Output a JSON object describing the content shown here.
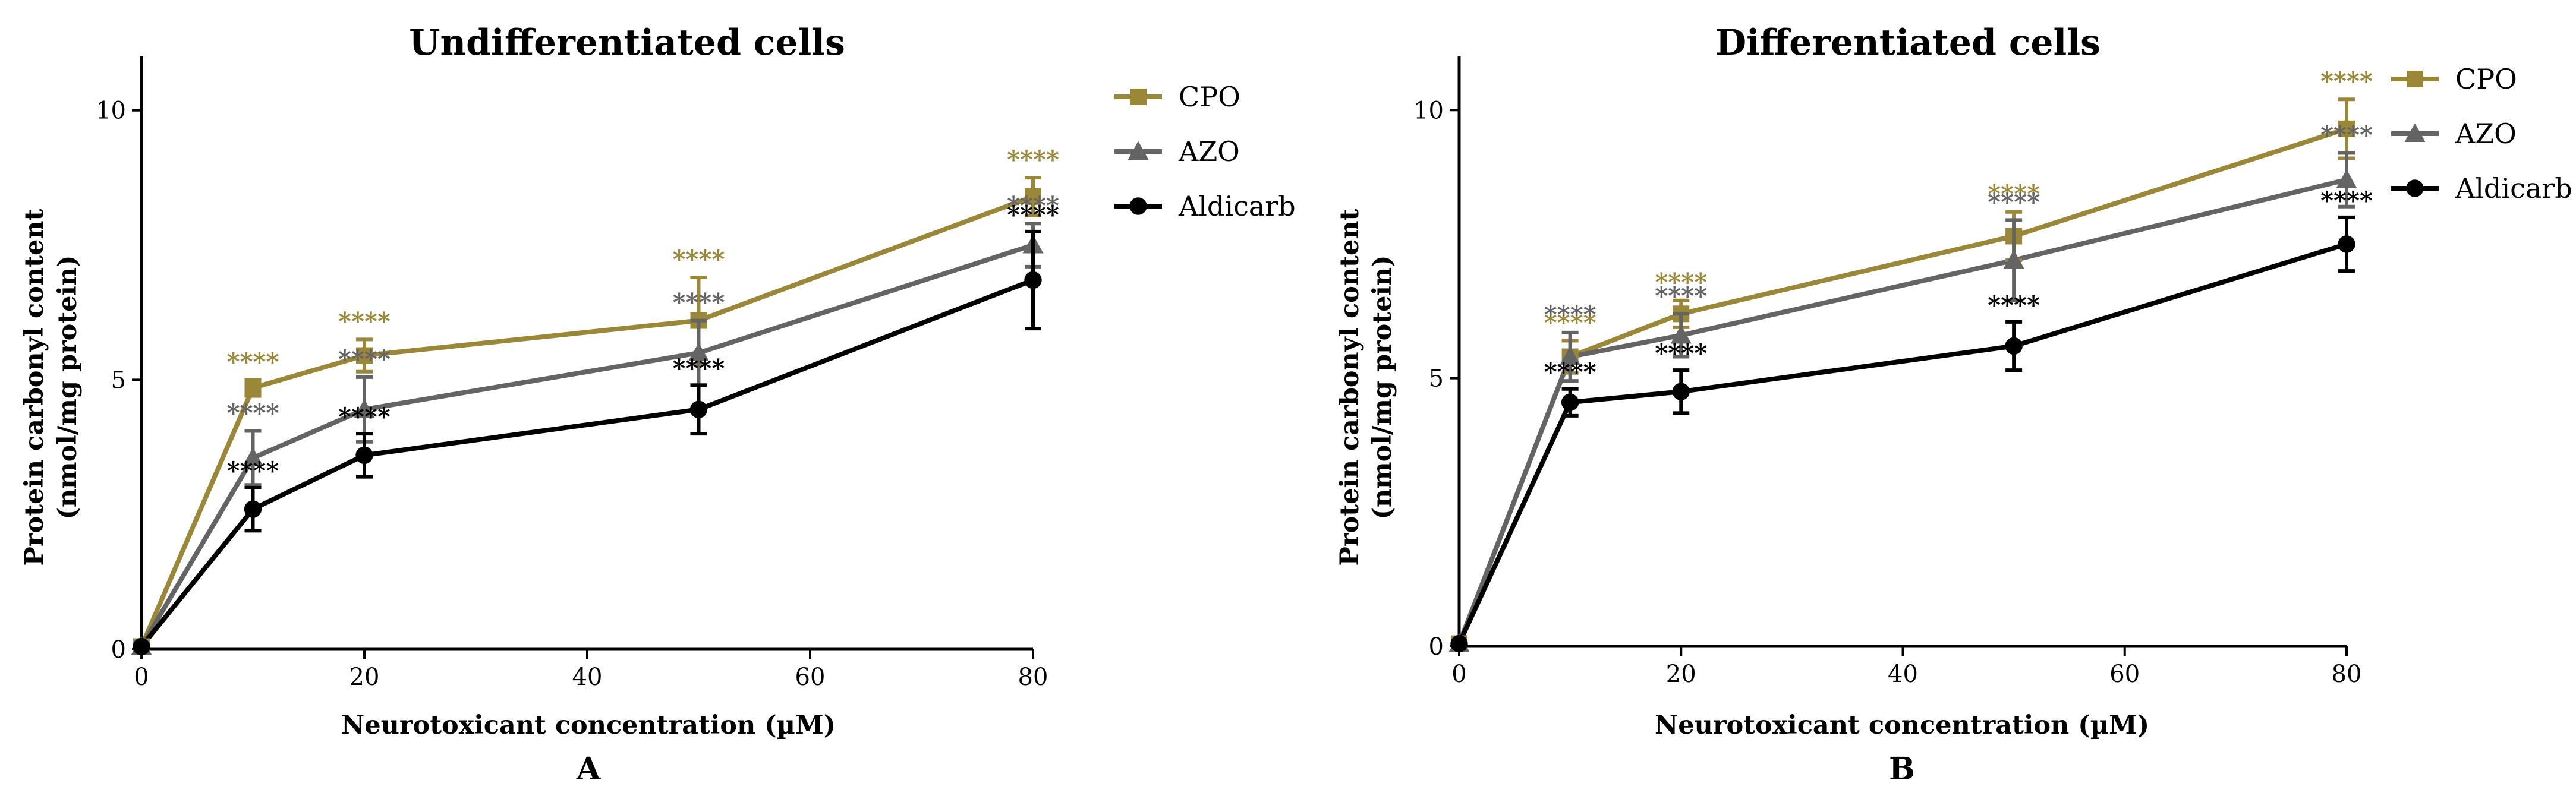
{
  "colors": {
    "CPO": "#9a8838",
    "AZO": "#646464",
    "Aldicarb": "#000000"
  },
  "chart_data": [
    {
      "type": "line",
      "panel": "A",
      "title": "Undifferentiated cells",
      "xlabel": "Neurotoxicant concentration (µM)",
      "ylabel_line1": "Protein carbonyl content",
      "ylabel_line2": "(nmol/mg protein)",
      "x": [
        0,
        10,
        20,
        50,
        80
      ],
      "xlim": [
        0,
        80
      ],
      "ylim": [
        0,
        11
      ],
      "xticks": [
        0,
        20,
        40,
        60,
        80
      ],
      "yticks": [
        0,
        5,
        10
      ],
      "legend_position": "top-right",
      "series": [
        {
          "name": "CPO",
          "marker": "square",
          "values": [
            0.05,
            4.85,
            5.45,
            6.1,
            8.4
          ],
          "errors": [
            0,
            0.15,
            0.3,
            0.8,
            0.35
          ],
          "labels": [
            "",
            "****",
            "****",
            "****",
            "****"
          ]
        },
        {
          "name": "AZO",
          "marker": "triangle",
          "values": [
            0.05,
            3.55,
            4.45,
            5.5,
            7.5
          ],
          "errors": [
            0,
            0.5,
            0.6,
            0.6,
            0.4
          ],
          "labels": [
            "",
            "****",
            "****",
            "****",
            "****"
          ]
        },
        {
          "name": "Aldicarb",
          "marker": "circle",
          "values": [
            0.05,
            2.6,
            3.6,
            4.45,
            6.85
          ],
          "errors": [
            0,
            0.4,
            0.4,
            0.45,
            0.9
          ],
          "labels": [
            "",
            "****",
            "****",
            "****",
            "****"
          ]
        }
      ]
    },
    {
      "type": "line",
      "panel": "B",
      "title": "Differentiated cells",
      "xlabel": "Neurotoxicant concentration (µM)",
      "ylabel_line1": "Protein carbonyl content",
      "ylabel_line2": "(nmol/mg protein)",
      "x": [
        0,
        10,
        20,
        50,
        80
      ],
      "xlim": [
        0,
        80
      ],
      "ylim": [
        0,
        11
      ],
      "xticks": [
        0,
        20,
        40,
        60,
        80
      ],
      "yticks": [
        0,
        5,
        10
      ],
      "legend_position": "top-right",
      "series": [
        {
          "name": "CPO",
          "marker": "square",
          "values": [
            0.05,
            5.4,
            6.2,
            7.65,
            9.65
          ],
          "errors": [
            0,
            0.3,
            0.25,
            0.45,
            0.55
          ],
          "labels": [
            "",
            "****",
            "****",
            "****",
            "****"
          ]
        },
        {
          "name": "AZO",
          "marker": "triangle",
          "values": [
            0.05,
            5.4,
            5.8,
            7.2,
            8.7
          ],
          "errors": [
            0,
            0.45,
            0.4,
            0.75,
            0.5
          ],
          "labels": [
            "",
            "****",
            "****",
            "****",
            "****"
          ]
        },
        {
          "name": "Aldicarb",
          "marker": "circle",
          "values": [
            0.05,
            4.55,
            4.75,
            5.6,
            7.5
          ],
          "errors": [
            0,
            0.25,
            0.4,
            0.45,
            0.5
          ],
          "labels": [
            "",
            "****",
            "****",
            "****",
            "****"
          ]
        }
      ]
    }
  ]
}
